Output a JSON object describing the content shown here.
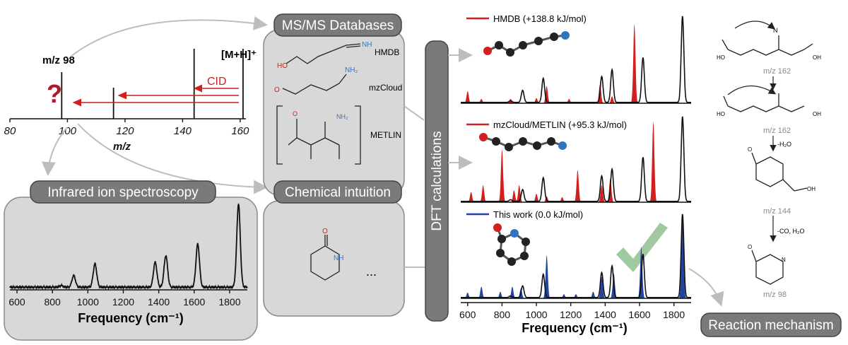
{
  "ms_panel": {
    "peak_label_98": "m/z 98",
    "precursor_label": "[M+H]⁺",
    "cid_label": "CID",
    "question_mark": "?",
    "x_ticks": [
      "80",
      "100",
      "120",
      "140",
      "160"
    ],
    "x_axis_label": "m/z"
  },
  "boxes": {
    "ms_databases": "MS/MS Databases",
    "chemical_intuition": "Chemical intuition",
    "infrared": "Infrared ion spectroscopy",
    "dft": "DFT calculations",
    "reaction": "Reaction mechanism"
  },
  "databases": [
    "HMDB",
    "mzCloud",
    "METLIN"
  ],
  "chemical_intuition_ellipsis": "...",
  "ir_axis": {
    "ticks": [
      "600",
      "800",
      "1000",
      "1200",
      "1400",
      "1600",
      "1800"
    ],
    "label": "Frequency (cm⁻¹)"
  },
  "dft_axis": {
    "ticks": [
      "600",
      "800",
      "1000",
      "1200",
      "1400",
      "1600",
      "1800"
    ],
    "label": "Frequency (cm⁻¹)"
  },
  "dft_spectra": [
    {
      "legend": "HMDB (+138.8 kJ/mol)",
      "color": "#d21f1f"
    },
    {
      "legend": "mzCloud/METLIN (+95.3 kJ/mol)",
      "color": "#d21f1f"
    },
    {
      "legend": "This work (0.0 kJ/mol)",
      "color": "#2145a0"
    }
  ],
  "mechanism": {
    "mz_labels": [
      "m/z 162",
      "m/z 162",
      "m/z 144",
      "m/z 98"
    ],
    "step_labels": [
      "-H₂O",
      "-CO, H₂O"
    ]
  },
  "colors": {
    "red": "#d21f1f",
    "blue": "#2145a0",
    "check": "#8fbf8f"
  },
  "chart_data": [
    {
      "type": "bar",
      "xlabel": "m/z",
      "x": [
        98,
        116,
        144,
        161
      ],
      "values": [
        0.6,
        0.4,
        0.9,
        0.9
      ],
      "xlim": [
        80,
        162
      ]
    },
    {
      "type": "line",
      "xlabel": "Frequency (cm⁻¹)",
      "xlim": [
        560,
        1900
      ],
      "x": [
        850,
        920,
        1040,
        1380,
        1440,
        1620,
        1850
      ],
      "values": [
        0.02,
        0.14,
        0.28,
        0.3,
        0.38,
        0.52,
        1.0
      ]
    }
  ]
}
